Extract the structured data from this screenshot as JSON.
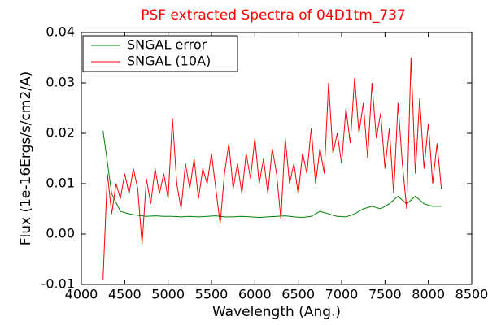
{
  "chart_data": {
    "type": "line",
    "title": "PSF extracted Spectra of 04D1tm_737",
    "xlabel": "Wavelength (Ang.)",
    "ylabel": "Flux (1e-16Ergs/s/cm2/A)",
    "xlim": [
      4000,
      8500
    ],
    "xticks": [
      4000,
      4500,
      5000,
      5500,
      6000,
      6500,
      7000,
      7500,
      8000,
      8500
    ],
    "ylim": [
      -0.01,
      0.04
    ],
    "yticks": [
      -0.01,
      {
        "value": 0,
        "label": "0.00"
      },
      0.01,
      0.02,
      0.03,
      0.04
    ],
    "legend": "upper left",
    "series": [
      {
        "name": "SNGAL error",
        "color": "#008000",
        "x": [
          4250,
          4350,
          4450,
          4550,
          4650,
          4750,
          4850,
          4950,
          5050,
          5150,
          5250,
          5350,
          5450,
          5550,
          5650,
          5750,
          5850,
          5950,
          6050,
          6150,
          6250,
          6350,
          6450,
          6550,
          6650,
          6750,
          6850,
          6950,
          7050,
          7150,
          7250,
          7350,
          7450,
          7550,
          7650,
          7750,
          7850,
          7950,
          8050,
          8150
        ],
        "values": [
          0.0205,
          0.008,
          0.0045,
          0.004,
          0.0037,
          0.0035,
          0.0036,
          0.0035,
          0.0035,
          0.0034,
          0.0035,
          0.0034,
          0.0035,
          0.0036,
          0.0034,
          0.0034,
          0.0035,
          0.0034,
          0.0033,
          0.0034,
          0.0035,
          0.0036,
          0.0034,
          0.0033,
          0.0035,
          0.0045,
          0.004,
          0.0035,
          0.0034,
          0.004,
          0.005,
          0.0055,
          0.005,
          0.006,
          0.0075,
          0.006,
          0.0075,
          0.006,
          0.0055,
          0.0055
        ]
      },
      {
        "name": "SNGAL (10A)",
        "color": "#ff0000",
        "x": [
          4250,
          4300,
          4350,
          4400,
          4450,
          4500,
          4550,
          4600,
          4650,
          4700,
          4750,
          4800,
          4850,
          4900,
          4950,
          5000,
          5050,
          5100,
          5150,
          5200,
          5250,
          5300,
          5350,
          5400,
          5450,
          5500,
          5550,
          5600,
          5650,
          5700,
          5750,
          5800,
          5850,
          5900,
          5950,
          6000,
          6050,
          6100,
          6150,
          6200,
          6250,
          6300,
          6350,
          6400,
          6450,
          6500,
          6550,
          6600,
          6650,
          6700,
          6750,
          6800,
          6850,
          6900,
          6950,
          7000,
          7050,
          7100,
          7150,
          7200,
          7250,
          7300,
          7350,
          7400,
          7450,
          7500,
          7550,
          7600,
          7650,
          7700,
          7750,
          7800,
          7850,
          7900,
          7950,
          8000,
          8050,
          8100,
          8150
        ],
        "values": [
          -0.009,
          0.012,
          0.004,
          0.01,
          0.007,
          0.012,
          0.008,
          0.013,
          0.009,
          -0.002,
          0.011,
          0.006,
          0.013,
          0.008,
          0.012,
          0.007,
          0.023,
          0.01,
          0.005,
          0.014,
          0.009,
          0.015,
          0.007,
          0.013,
          0.01,
          0.016,
          0.009,
          0.002,
          0.012,
          0.018,
          0.009,
          0.014,
          0.008,
          0.016,
          0.011,
          0.019,
          0.01,
          0.015,
          0.008,
          0.017,
          0.012,
          0.003,
          0.019,
          0.01,
          0.014,
          0.008,
          0.016,
          0.012,
          0.021,
          0.01,
          0.017,
          0.012,
          0.03,
          0.016,
          0.02,
          0.014,
          0.025,
          0.018,
          0.031,
          0.02,
          0.026,
          0.015,
          0.03,
          0.019,
          0.024,
          0.013,
          0.021,
          0.008,
          0.026,
          0.014,
          0.005,
          0.035,
          0.012,
          0.027,
          0.013,
          0.022,
          0.01,
          0.018,
          0.009
        ]
      }
    ]
  }
}
